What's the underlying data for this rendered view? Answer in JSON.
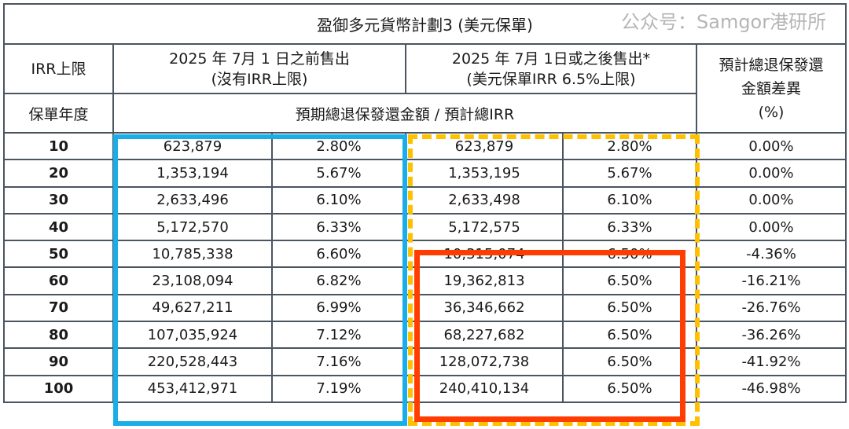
{
  "title": "盈御多元貨幣計劃3 (美元保單)",
  "headers": {
    "irr_cap": "IRR上限",
    "policy_year": "保單年度",
    "before_line1": "2025 年 7月 1 日之前售出",
    "before_line2": "(沒有IRR上限)",
    "after_line1": "2025 年 7月 1日或之後售出*",
    "after_line2": "(美元保單IRR 6.5%上限)",
    "sub": "預期總退保發還金額 / 預計總IRR",
    "diff_line1": "預計總退保發還",
    "diff_line2": "金額差異",
    "diff_line3": "(%)"
  },
  "rows": [
    {
      "year": "10",
      "before_amt": "623,879",
      "before_irr": "2.80%",
      "after_amt": "623,879",
      "after_irr": "2.80%",
      "diff": "0.00%"
    },
    {
      "year": "20",
      "before_amt": "1,353,194",
      "before_irr": "5.67%",
      "after_amt": "1,353,195",
      "after_irr": "5.67%",
      "diff": "0.00%"
    },
    {
      "year": "30",
      "before_amt": "2,633,496",
      "before_irr": "6.10%",
      "after_amt": "2,633,498",
      "after_irr": "6.10%",
      "diff": "0.00%"
    },
    {
      "year": "40",
      "before_amt": "5,172,570",
      "before_irr": "6.33%",
      "after_amt": "5,172,575",
      "after_irr": "6.33%",
      "diff": "0.00%"
    },
    {
      "year": "50",
      "before_amt": "10,785,338",
      "before_irr": "6.60%",
      "after_amt": "10,315,074",
      "after_irr": "6.50%",
      "diff": "-4.36%"
    },
    {
      "year": "60",
      "before_amt": "23,108,094",
      "before_irr": "6.82%",
      "after_amt": "19,362,813",
      "after_irr": "6.50%",
      "diff": "-16.21%"
    },
    {
      "year": "70",
      "before_amt": "49,627,211",
      "before_irr": "6.99%",
      "after_amt": "36,346,662",
      "after_irr": "6.50%",
      "diff": "-26.76%"
    },
    {
      "year": "80",
      "before_amt": "107,035,924",
      "before_irr": "7.12%",
      "after_amt": "68,227,682",
      "after_irr": "6.50%",
      "diff": "-36.26%"
    },
    {
      "year": "90",
      "before_amt": "220,528,443",
      "before_irr": "7.16%",
      "after_amt": "128,072,738",
      "after_irr": "6.50%",
      "diff": "-41.92%"
    },
    {
      "year": "100",
      "before_amt": "453,412,971",
      "before_irr": "7.19%",
      "after_amt": "240,410,134",
      "after_irr": "6.50%",
      "diff": "-46.98%"
    }
  ],
  "highlights": {
    "blue": "#1aaee8",
    "yellow": "#ffc000",
    "red": "#ff3d00"
  },
  "watermark": "公众号：Samgor港研所"
}
